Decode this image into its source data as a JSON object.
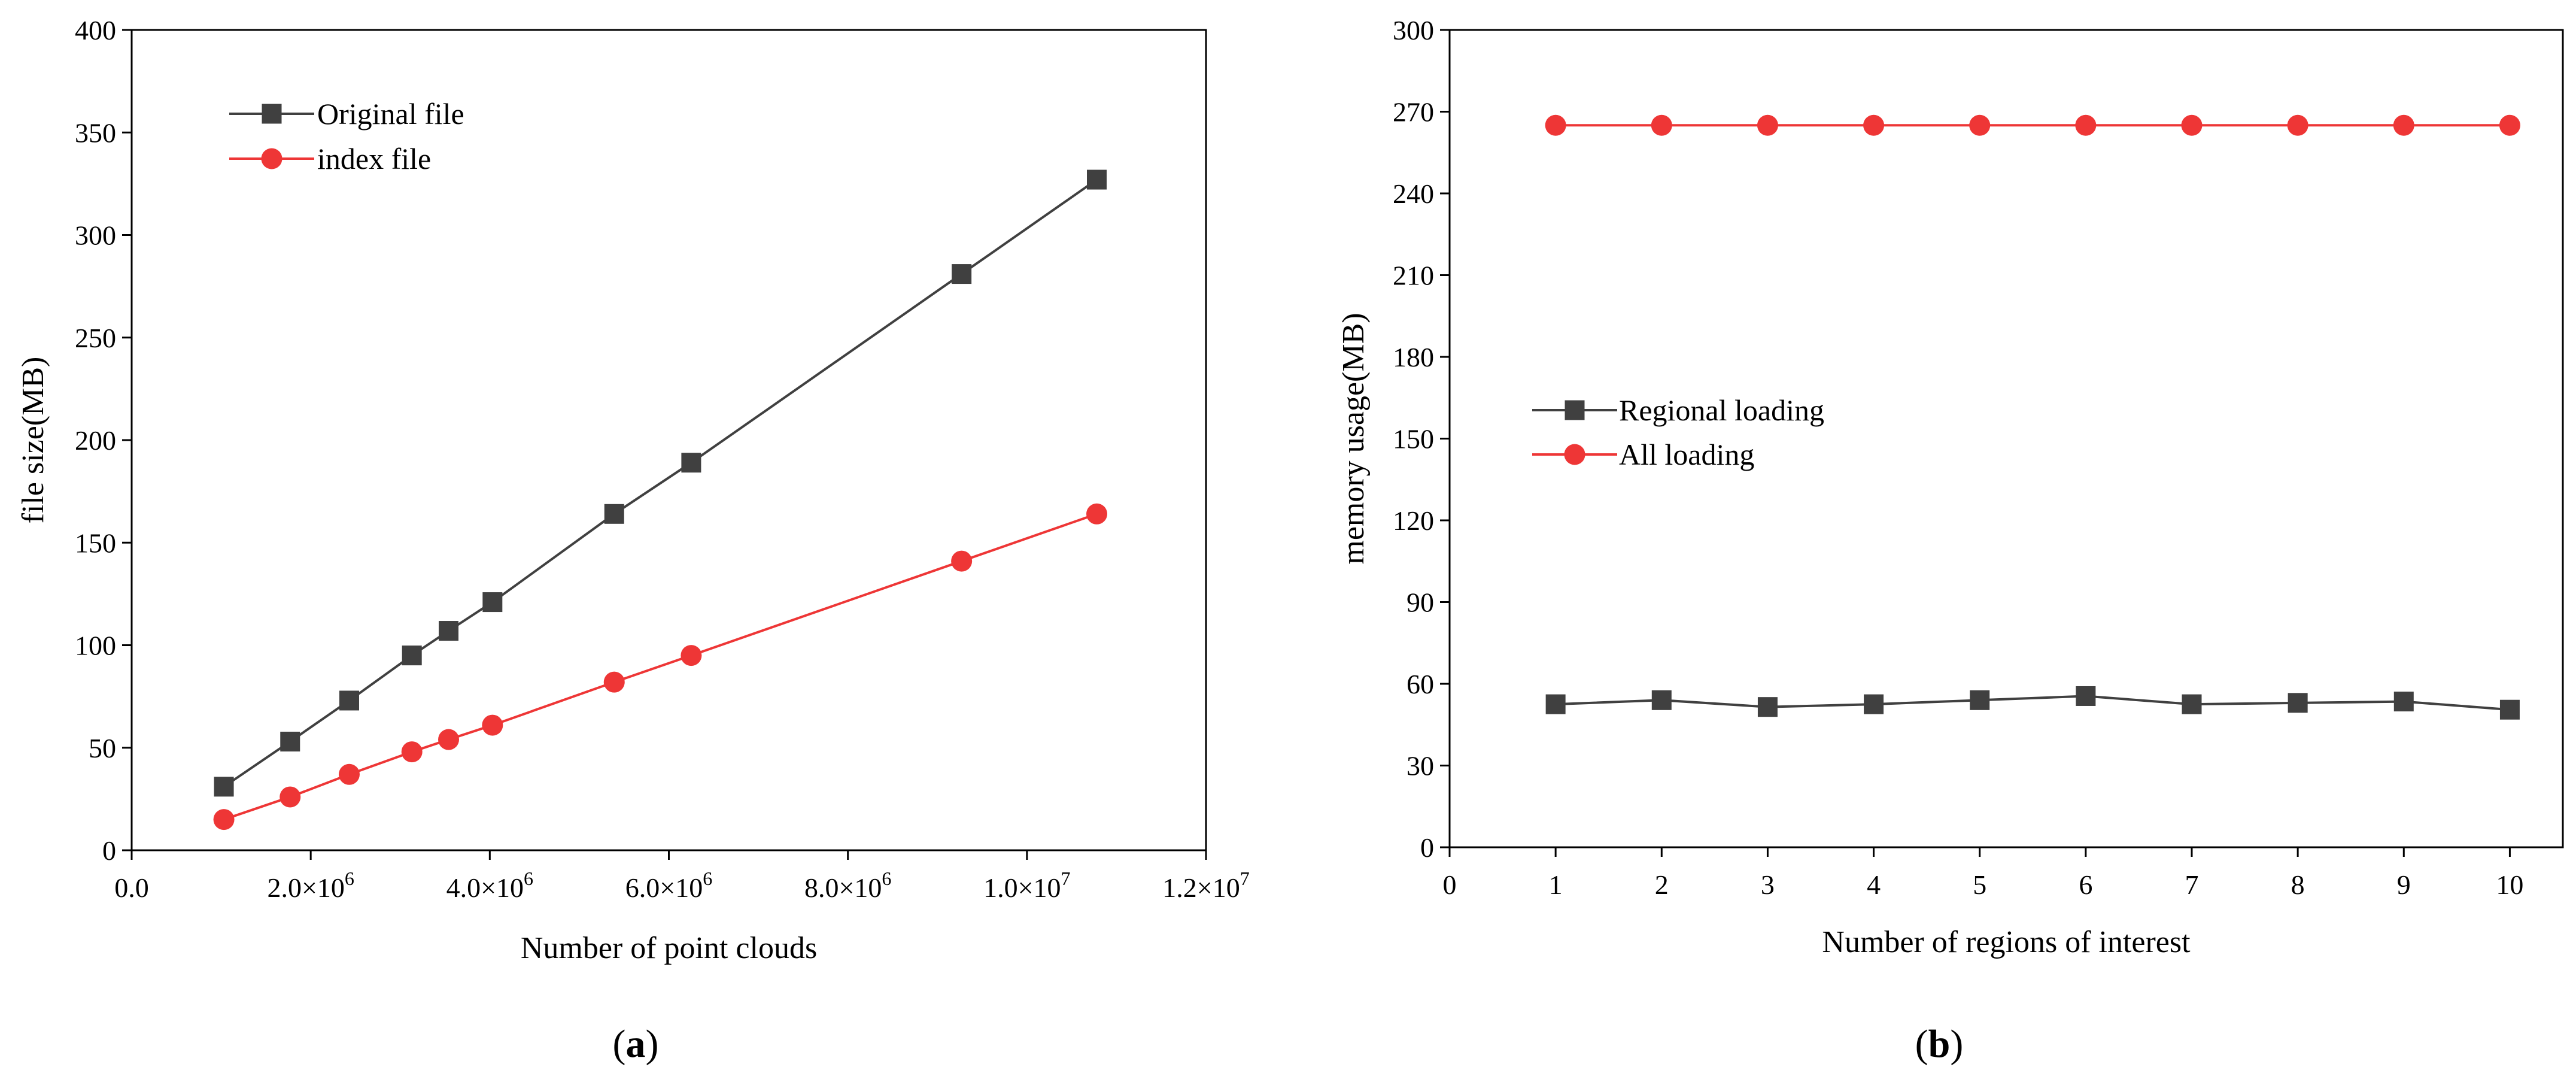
{
  "chart_data": [
    {
      "type": "line",
      "caption": "(a)",
      "caption_letter": "a",
      "xlabel": "Number of point clouds",
      "ylabel": "file size(MB)",
      "xlim": [
        0,
        12000000
      ],
      "ylim": [
        0,
        400
      ],
      "x_ticks": [
        0,
        2000000,
        4000000,
        6000000,
        8000000,
        10000000,
        12000000
      ],
      "x_tick_labels": [
        {
          "mant": "0.0",
          "exp": ""
        },
        {
          "mant": "2.0×10",
          "exp": "6"
        },
        {
          "mant": "4.0×10",
          "exp": "6"
        },
        {
          "mant": "6.0×10",
          "exp": "6"
        },
        {
          "mant": "8.0×10",
          "exp": "6"
        },
        {
          "mant": "1.0×10",
          "exp": "7"
        },
        {
          "mant": "1.2×10",
          "exp": "7"
        }
      ],
      "y_ticks": [
        0,
        50,
        100,
        150,
        200,
        250,
        300,
        350,
        400
      ],
      "y_tick_labels": [
        "0",
        "50",
        "100",
        "150",
        "200",
        "250",
        "300",
        "350",
        "400"
      ],
      "legend_position": "top-left",
      "series": [
        {
          "name": "Original file",
          "color": "#404040",
          "marker": "square",
          "x": [
            1030000,
            1770000,
            2430000,
            3130000,
            3540000,
            4030000,
            5390000,
            6250000,
            9270000,
            10780000
          ],
          "values": [
            31,
            53,
            73,
            95,
            107,
            121,
            164,
            189,
            281,
            327
          ]
        },
        {
          "name": "index file",
          "color": "#ee3636",
          "marker": "circle",
          "x": [
            1030000,
            1770000,
            2430000,
            3130000,
            3540000,
            4030000,
            5390000,
            6250000,
            9270000,
            10780000
          ],
          "values": [
            15,
            26,
            37,
            48,
            54,
            61,
            82,
            95,
            141,
            164
          ]
        }
      ]
    },
    {
      "type": "line",
      "caption": "(b)",
      "caption_letter": "b",
      "xlabel": "Number of regions of interest",
      "ylabel": "memory usage(MB)",
      "xlim": [
        0,
        10.5
      ],
      "ylim": [
        0,
        300
      ],
      "x_ticks": [
        0,
        1,
        2,
        3,
        4,
        5,
        6,
        7,
        8,
        9,
        10
      ],
      "x_tick_labels": [
        {
          "mant": "0",
          "exp": ""
        },
        {
          "mant": "1",
          "exp": ""
        },
        {
          "mant": "2",
          "exp": ""
        },
        {
          "mant": "3",
          "exp": ""
        },
        {
          "mant": "4",
          "exp": ""
        },
        {
          "mant": "5",
          "exp": ""
        },
        {
          "mant": "6",
          "exp": ""
        },
        {
          "mant": "7",
          "exp": ""
        },
        {
          "mant": "8",
          "exp": ""
        },
        {
          "mant": "9",
          "exp": ""
        },
        {
          "mant": "10",
          "exp": ""
        }
      ],
      "y_ticks": [
        0,
        30,
        60,
        90,
        120,
        150,
        180,
        210,
        240,
        270,
        300
      ],
      "y_tick_labels": [
        "0",
        "30",
        "60",
        "90",
        "120",
        "150",
        "180",
        "210",
        "240",
        "270",
        "300"
      ],
      "legend_position": "center-left",
      "series": [
        {
          "name": "Regional loading",
          "color": "#404040",
          "marker": "square",
          "x": [
            1,
            2,
            3,
            4,
            5,
            6,
            7,
            8,
            9,
            10
          ],
          "values": [
            52.5,
            54,
            51.5,
            52.5,
            54,
            55.5,
            52.5,
            53,
            53.5,
            50.5
          ]
        },
        {
          "name": "All loading",
          "color": "#ee3636",
          "marker": "circle",
          "x": [
            1,
            2,
            3,
            4,
            5,
            6,
            7,
            8,
            9,
            10
          ],
          "values": [
            265,
            265,
            265,
            265,
            265,
            265,
            265,
            265,
            265,
            265
          ]
        }
      ]
    }
  ]
}
